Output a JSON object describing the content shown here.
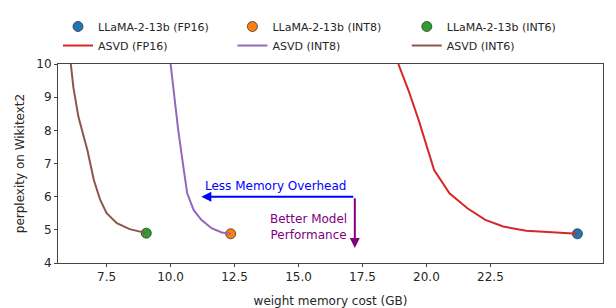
{
  "chart_data": {
    "type": "line",
    "xlabel": "weight memory cost (GB)",
    "ylabel": "perplexity on Wikitext2",
    "xlim": [
      5.6,
      26.9
    ],
    "ylim": [
      4,
      10
    ],
    "xticks": [
      7.5,
      {
        "value": 10,
        "label": "10.0"
      },
      12.5,
      {
        "value": 15,
        "label": "15.0"
      },
      17.5,
      {
        "value": 20,
        "label": "20.0"
      },
      22.5
    ],
    "yticks": [
      4,
      5,
      6,
      7,
      8,
      9,
      10
    ],
    "grid": false,
    "legend": "top",
    "series": [
      {
        "name": "LLaMA-2-13b (FP16)",
        "type": "scatter",
        "marker": "circle",
        "color": "#1f77b4",
        "x": [
          25.9
        ],
        "values": [
          4.88
        ]
      },
      {
        "name": "LLaMA-2-13b (INT8)",
        "type": "scatter",
        "marker": "circle",
        "color": "#ff7f0e",
        "x": [
          12.35
        ],
        "values": [
          4.88
        ]
      },
      {
        "name": "LLaMA-2-13b (INT6)",
        "type": "scatter",
        "marker": "circle",
        "color": "#2ca02c",
        "x": [
          9.05
        ],
        "values": [
          4.9
        ]
      },
      {
        "name": "ASVD (FP16)",
        "type": "line",
        "line_style": "solid",
        "color": "#d62728",
        "x": [
          18.9,
          19.3,
          19.7,
          20.3,
          20.9,
          21.6,
          22.3,
          23.0,
          23.9,
          24.8,
          25.9
        ],
        "values": [
          10,
          9.2,
          8.3,
          6.8,
          6.1,
          5.65,
          5.3,
          5.1,
          4.97,
          4.92,
          4.88
        ]
      },
      {
        "name": "ASVD (INT8)",
        "type": "line",
        "line_style": "solid",
        "color": "#9467bd",
        "x": [
          10.0,
          10.15,
          10.3,
          10.5,
          10.65,
          10.9,
          11.2,
          11.6,
          12.0,
          12.35
        ],
        "values": [
          10,
          9.0,
          8.0,
          6.9,
          6.1,
          5.6,
          5.3,
          5.05,
          4.92,
          4.88
        ]
      },
      {
        "name": "ASVD (INT6)",
        "type": "line",
        "line_style": "solid",
        "color": "#8c564b",
        "x": [
          6.1,
          6.2,
          6.4,
          6.75,
          7.0,
          7.25,
          7.5,
          7.9,
          8.4,
          9.05
        ],
        "values": [
          10,
          9.3,
          8.4,
          7.4,
          6.5,
          5.9,
          5.5,
          5.2,
          5.02,
          4.9
        ]
      }
    ],
    "annotations": [
      {
        "text": "Less Memory Overhead",
        "color": "blue",
        "x": 14.1,
        "y": 6.33
      },
      {
        "text": "Better Model\nPerformance",
        "color": "purple",
        "x": 15.4,
        "y": 5.1
      }
    ],
    "arrows": [
      {
        "x": 11.2,
        "y": 6,
        "ax": 17.2,
        "ay": 6,
        "color": "blue"
      },
      {
        "x": 17.2,
        "y": 4.45,
        "ax": 17.2,
        "ay": 6,
        "color": "purple"
      }
    ]
  }
}
